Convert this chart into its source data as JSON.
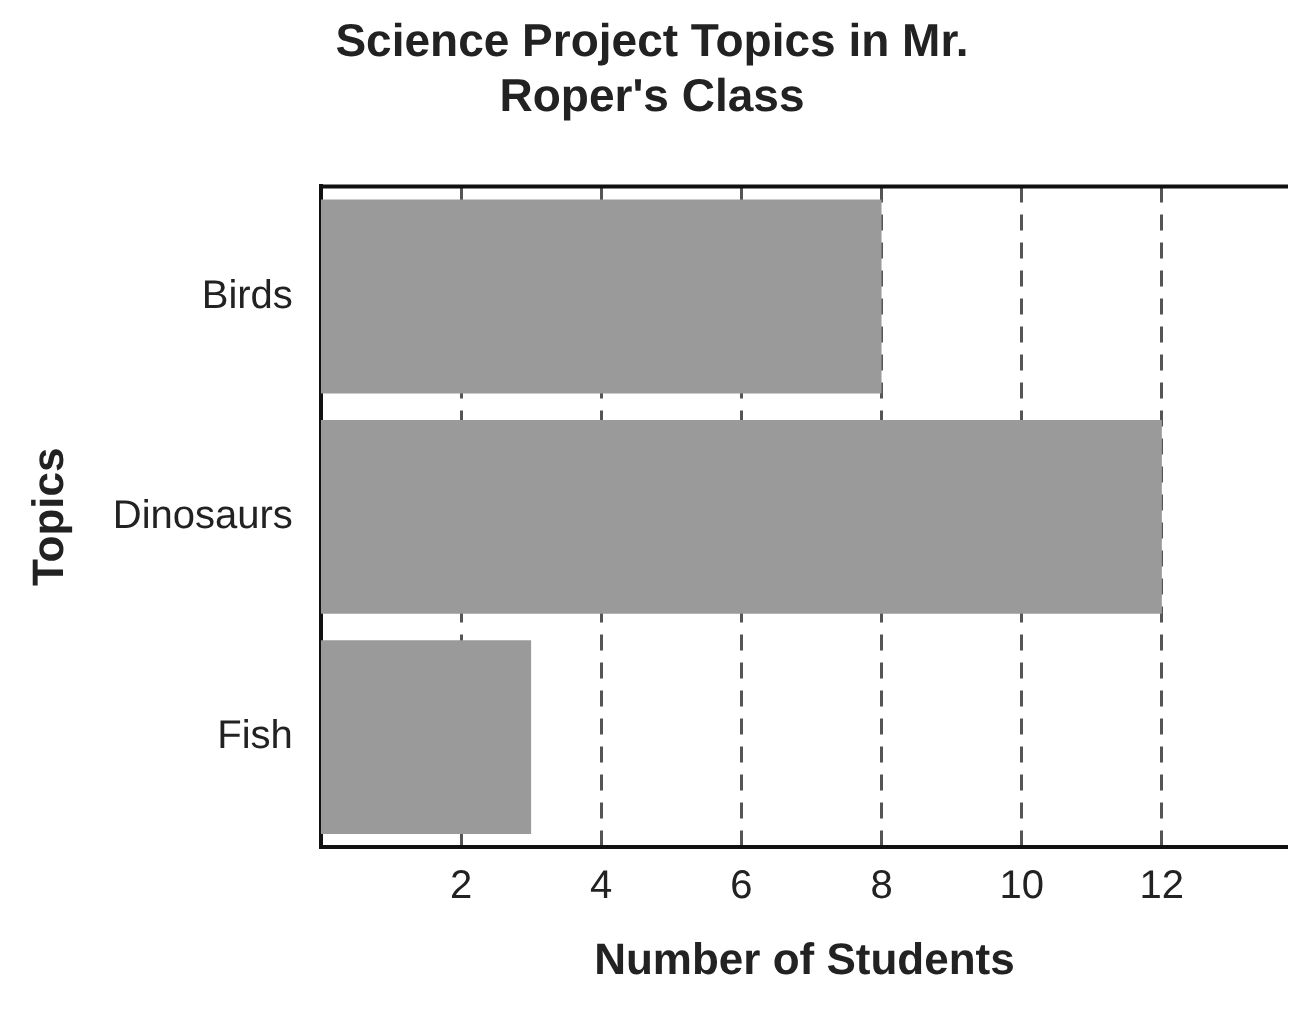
{
  "chart_data": {
    "type": "bar",
    "orientation": "horizontal",
    "title": "Science Project Topics in Mr. Roper's Class",
    "xlabel": "Number of Students",
    "ylabel": "Topics",
    "categories": [
      "Birds",
      "Dinosaurs",
      "Fish"
    ],
    "values": [
      8,
      12,
      3
    ],
    "color": "#9a9a9a",
    "xlim": [
      0,
      13.8
    ],
    "xticks": [
      2,
      4,
      6,
      8,
      10,
      12
    ],
    "grid": "x",
    "legend": false
  }
}
